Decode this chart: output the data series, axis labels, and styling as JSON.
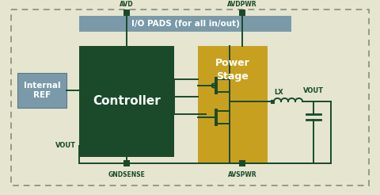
{
  "bg_color": "#e5e5d0",
  "dark_green": "#1a4a2a",
  "gold": "#c8a020",
  "gray_iop": "#7a9aaa",
  "gray_ref": "#7a9aaa",
  "wire_color": "#1a4a2a",
  "dot_color": "#1a4a2a",
  "border_color": "#aaaaaa",
  "controller_label": "Controller",
  "power_stage_label": "Power\nStage",
  "internal_ref_label": "Internal\nREF",
  "io_pads_label": "I/O PADS (for all in/out)",
  "lx_label": "LX",
  "vout_label": "VOUT",
  "avd_label": "AVD",
  "avdpwr_label": "AVDPWR",
  "gndsense_label": "GNDSENSE",
  "avspwr_label": "AVSPWR",
  "vout_fb_label": "VOUT",
  "figw": 4.8,
  "figh": 2.46,
  "dpi": 100
}
